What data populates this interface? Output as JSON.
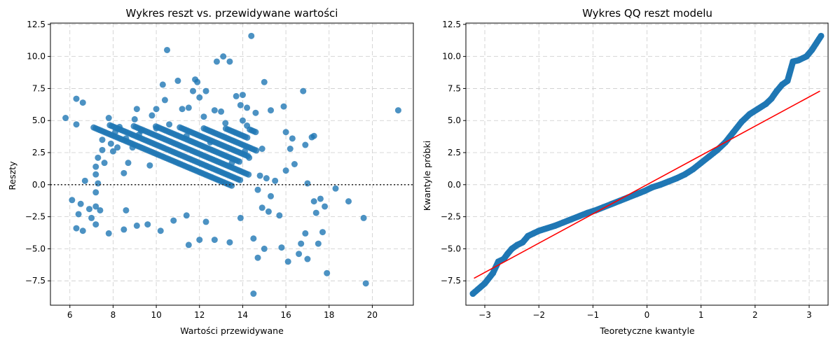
{
  "chart_data": [
    {
      "type": "scatter",
      "title": "Wykres reszt vs. przewidywane wartości",
      "xlabel": "Wartości przewidywane",
      "ylabel": "Reszty",
      "xlim": [
        5.1,
        21.9
      ],
      "ylim": [
        -9.4,
        12.6
      ],
      "xticks": [
        6,
        8,
        10,
        12,
        14,
        16,
        18,
        20
      ],
      "yticks": [
        -7.5,
        -5.0,
        -2.5,
        0.0,
        2.5,
        5.0,
        7.5,
        10.0,
        12.5
      ],
      "xtick_labels": [
        "6",
        "8",
        "10",
        "12",
        "14",
        "16",
        "18",
        "20"
      ],
      "ytick_labels": [
        "−7.5",
        "−5.0",
        "−2.5",
        "0.0",
        "2.5",
        "5.0",
        "7.5",
        "10.0",
        "12.5"
      ],
      "grid": true,
      "point_color": "#1f77b4",
      "reference_line": {
        "y": 0,
        "style": "dotted",
        "color": "#333333"
      },
      "band_step": 0.71,
      "band_slope": -0.71,
      "series": [
        {
          "points": [
            [
              5.8,
              5.2
            ],
            [
              6.3,
              6.7
            ],
            [
              6.3,
              4.7
            ],
            [
              6.6,
              6.4
            ],
            [
              6.1,
              -1.2
            ],
            [
              6.3,
              -3.4
            ],
            [
              6.4,
              -2.3
            ],
            [
              6.5,
              -1.5
            ],
            [
              6.6,
              -3.6
            ],
            [
              6.7,
              0.3
            ],
            [
              6.9,
              -1.9
            ],
            [
              7.0,
              -2.6
            ],
            [
              7.2,
              -1.7
            ],
            [
              7.3,
              0.1
            ],
            [
              7.2,
              -3.1
            ],
            [
              7.4,
              -2.0
            ],
            [
              7.2,
              0.8
            ],
            [
              7.2,
              1.4
            ],
            [
              7.2,
              -0.6
            ],
            [
              7.3,
              2.1
            ],
            [
              7.5,
              2.7
            ],
            [
              7.5,
              3.5
            ],
            [
              7.6,
              1.7
            ],
            [
              7.8,
              -3.8
            ],
            [
              7.8,
              5.2
            ],
            [
              7.9,
              3.2
            ],
            [
              8.0,
              2.6
            ],
            [
              8.1,
              4.1
            ],
            [
              8.2,
              2.9
            ],
            [
              8.3,
              4.5
            ],
            [
              8.5,
              0.9
            ],
            [
              8.5,
              -3.5
            ],
            [
              8.6,
              -2.0
            ],
            [
              8.6,
              3.6
            ],
            [
              8.7,
              1.7
            ],
            [
              8.9,
              2.9
            ],
            [
              9.0,
              5.1
            ],
            [
              9.1,
              -3.2
            ],
            [
              9.1,
              5.9
            ],
            [
              9.2,
              3.9
            ],
            [
              9.3,
              4.2
            ],
            [
              9.6,
              -3.1
            ],
            [
              9.7,
              1.5
            ],
            [
              9.8,
              5.4
            ],
            [
              10.0,
              4.4
            ],
            [
              10.0,
              5.9
            ],
            [
              10.2,
              -3.6
            ],
            [
              10.3,
              7.8
            ],
            [
              10.5,
              10.5
            ],
            [
              10.4,
              6.6
            ],
            [
              10.6,
              4.7
            ],
            [
              10.8,
              -2.8
            ],
            [
              11.0,
              8.1
            ],
            [
              11.2,
              5.9
            ],
            [
              11.4,
              -2.4
            ],
            [
              11.4,
              3.8
            ],
            [
              11.5,
              -4.7
            ],
            [
              11.5,
              6.0
            ],
            [
              11.7,
              7.3
            ],
            [
              11.8,
              8.2
            ],
            [
              11.9,
              8.0
            ],
            [
              12.0,
              6.8
            ],
            [
              12.0,
              -4.3
            ],
            [
              12.2,
              5.3
            ],
            [
              12.3,
              7.3
            ],
            [
              12.3,
              -2.9
            ],
            [
              12.5,
              3.3
            ],
            [
              12.7,
              5.8
            ],
            [
              12.7,
              -4.3
            ],
            [
              12.8,
              9.6
            ],
            [
              13.0,
              5.7
            ],
            [
              13.1,
              10.0
            ],
            [
              13.2,
              4.8
            ],
            [
              13.4,
              9.6
            ],
            [
              13.4,
              -4.5
            ],
            [
              13.5,
              1.7
            ],
            [
              13.7,
              6.9
            ],
            [
              13.9,
              6.2
            ],
            [
              13.9,
              -2.6
            ],
            [
              14.0,
              5.0
            ],
            [
              14.0,
              7.0
            ],
            [
              14.1,
              2.6
            ],
            [
              14.2,
              6.0
            ],
            [
              14.2,
              4.6
            ],
            [
              14.3,
              2.1
            ],
            [
              14.4,
              11.6
            ],
            [
              14.5,
              -8.5
            ],
            [
              14.5,
              -4.2
            ],
            [
              14.6,
              5.6
            ],
            [
              14.7,
              -5.7
            ],
            [
              14.7,
              -0.4
            ],
            [
              14.8,
              0.7
            ],
            [
              14.9,
              -1.8
            ],
            [
              14.9,
              2.8
            ],
            [
              15.0,
              -5.0
            ],
            [
              15.0,
              8.0
            ],
            [
              15.1,
              0.5
            ],
            [
              15.2,
              -2.1
            ],
            [
              15.3,
              5.8
            ],
            [
              15.3,
              -0.9
            ],
            [
              15.5,
              0.3
            ],
            [
              15.7,
              -2.4
            ],
            [
              15.8,
              -4.9
            ],
            [
              15.9,
              6.1
            ],
            [
              16.0,
              1.1
            ],
            [
              16.0,
              4.1
            ],
            [
              16.1,
              -6.0
            ],
            [
              16.2,
              2.8
            ],
            [
              16.3,
              3.6
            ],
            [
              16.4,
              1.6
            ],
            [
              16.6,
              -5.4
            ],
            [
              16.7,
              -4.6
            ],
            [
              16.8,
              7.3
            ],
            [
              16.9,
              3.1
            ],
            [
              16.9,
              -3.8
            ],
            [
              17.0,
              -5.8
            ],
            [
              17.0,
              0.1
            ],
            [
              17.2,
              3.7
            ],
            [
              17.3,
              -1.3
            ],
            [
              17.3,
              3.8
            ],
            [
              17.4,
              -2.2
            ],
            [
              17.5,
              -4.6
            ],
            [
              17.6,
              -1.1
            ],
            [
              17.7,
              -3.7
            ],
            [
              17.8,
              -1.7
            ],
            [
              17.9,
              -6.9
            ],
            [
              18.3,
              -0.3
            ],
            [
              18.9,
              -1.3
            ],
            [
              19.6,
              -2.6
            ],
            [
              19.7,
              -7.7
            ],
            [
              21.2,
              5.8
            ]
          ]
        }
      ]
    },
    {
      "type": "scatter",
      "title": "Wykres QQ reszt modelu",
      "xlabel": "Teoretyczne kwantyle",
      "ylabel": "Kwantyle próbki",
      "xlim": [
        -3.35,
        3.35
      ],
      "ylim": [
        -9.4,
        12.6
      ],
      "xticks": [
        -3,
        -2,
        -1,
        0,
        1,
        2,
        3
      ],
      "yticks": [
        -7.5,
        -5.0,
        -2.5,
        0.0,
        2.5,
        5.0,
        7.5,
        10.0,
        12.5
      ],
      "xtick_labels": [
        "−3",
        "−2",
        "−1",
        "0",
        "1",
        "2",
        "3"
      ],
      "ytick_labels": [
        "−7.5",
        "−5.0",
        "−2.5",
        "0.0",
        "2.5",
        "5.0",
        "7.5",
        "10.0",
        "12.5"
      ],
      "grid": true,
      "point_color": "#1f77b4",
      "reference_line": {
        "x1": -3.2,
        "y1": -7.3,
        "x2": 3.2,
        "y2": 7.3,
        "color": "#ff0000"
      },
      "series": [
        {
          "points": [
            [
              -3.22,
              -8.5
            ],
            [
              -3.0,
              -7.7
            ],
            [
              -2.85,
              -6.9
            ],
            [
              -2.75,
              -6.0
            ],
            [
              -2.65,
              -5.8
            ],
            [
              -2.58,
              -5.4
            ],
            [
              -2.5,
              -5.0
            ],
            [
              -2.4,
              -4.7
            ],
            [
              -2.3,
              -4.5
            ],
            [
              -2.2,
              -4.0
            ],
            [
              -2.1,
              -3.8
            ],
            [
              -2.0,
              -3.6
            ],
            [
              -1.85,
              -3.4
            ],
            [
              -1.7,
              -3.2
            ],
            [
              -1.55,
              -2.95
            ],
            [
              -1.4,
              -2.7
            ],
            [
              -1.25,
              -2.45
            ],
            [
              -1.1,
              -2.2
            ],
            [
              -0.95,
              -2.0
            ],
            [
              -0.8,
              -1.75
            ],
            [
              -0.65,
              -1.5
            ],
            [
              -0.5,
              -1.25
            ],
            [
              -0.35,
              -1.0
            ],
            [
              -0.2,
              -0.75
            ],
            [
              -0.05,
              -0.5
            ],
            [
              0.1,
              -0.2
            ],
            [
              0.25,
              0.0
            ],
            [
              0.4,
              0.25
            ],
            [
              0.55,
              0.5
            ],
            [
              0.7,
              0.8
            ],
            [
              0.85,
              1.2
            ],
            [
              1.0,
              1.7
            ],
            [
              1.15,
              2.2
            ],
            [
              1.3,
              2.7
            ],
            [
              1.45,
              3.3
            ],
            [
              1.6,
              4.1
            ],
            [
              1.75,
              4.9
            ],
            [
              1.9,
              5.5
            ],
            [
              2.05,
              5.9
            ],
            [
              2.2,
              6.3
            ],
            [
              2.3,
              6.7
            ],
            [
              2.4,
              7.3
            ],
            [
              2.5,
              7.8
            ],
            [
              2.6,
              8.1
            ],
            [
              2.7,
              9.6
            ],
            [
              2.8,
              9.7
            ],
            [
              2.95,
              10.0
            ],
            [
              3.05,
              10.5
            ],
            [
              3.22,
              11.6
            ]
          ]
        }
      ]
    }
  ]
}
